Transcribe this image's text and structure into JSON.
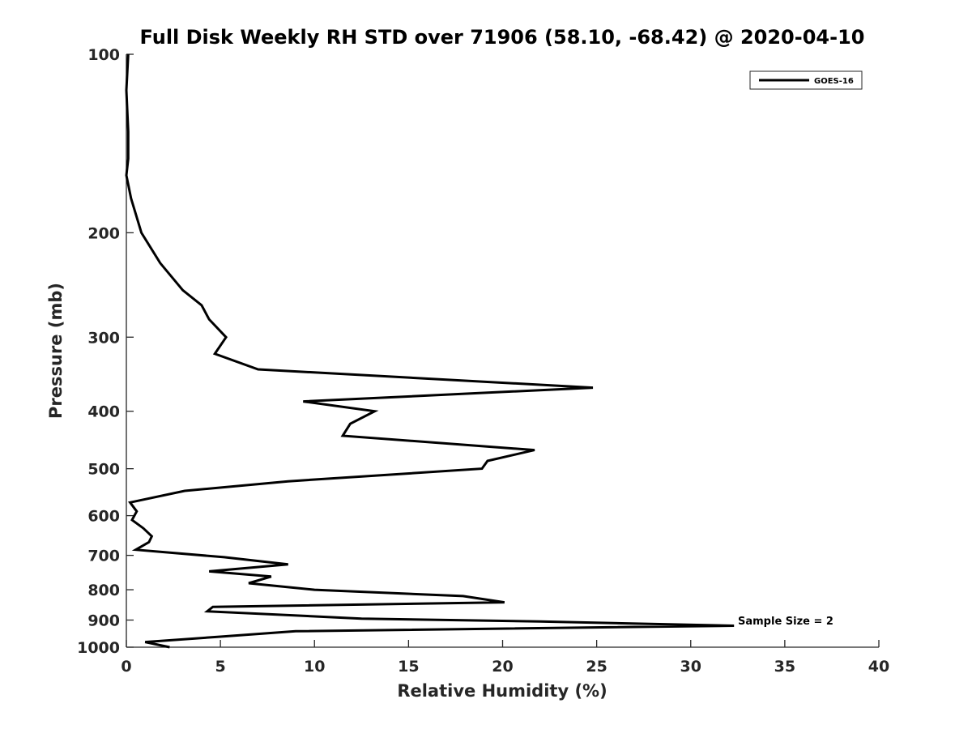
{
  "chart_data": {
    "type": "line",
    "title": "Full Disk Weekly RH STD over 71906 (58.10, -68.42) @ 2020-04-10",
    "xlabel": "Relative Humidity (%)",
    "ylabel": "Pressure (mb)",
    "xlim": [
      0,
      40
    ],
    "ylim": [
      1000,
      100
    ],
    "yscale": "log",
    "reversed_y": true,
    "grid": false,
    "legend_position": "top-right",
    "x_ticks": [
      0,
      5,
      10,
      15,
      20,
      25,
      30,
      35,
      40
    ],
    "x_tick_labels": [
      "0",
      "5",
      "10",
      "15",
      "20",
      "25",
      "30",
      "35",
      "40"
    ],
    "y_ticks": [
      100,
      200,
      300,
      400,
      500,
      600,
      700,
      800,
      900,
      1000
    ],
    "y_tick_labels": [
      "100",
      "200",
      "300",
      "400",
      "500",
      "600",
      "700",
      "800",
      "900",
      "1000"
    ],
    "line_color": "#000000",
    "series": [
      {
        "name": "GOES-16",
        "points": [
          [
            0.1,
            100
          ],
          [
            0.0,
            115
          ],
          [
            0.1,
            135
          ],
          [
            0.1,
            150
          ],
          [
            0.0,
            160
          ],
          [
            0.25,
            175
          ],
          [
            0.8,
            200
          ],
          [
            1.8,
            225
          ],
          [
            3.0,
            250
          ],
          [
            4.0,
            265
          ],
          [
            4.4,
            280
          ],
          [
            5.3,
            300
          ],
          [
            4.7,
            320
          ],
          [
            7.0,
            340
          ],
          [
            24.8,
            365
          ],
          [
            9.4,
            385
          ],
          [
            13.2,
            400
          ],
          [
            11.9,
            420
          ],
          [
            11.5,
            440
          ],
          [
            21.7,
            465
          ],
          [
            19.2,
            485
          ],
          [
            18.9,
            500
          ],
          [
            8.6,
            525
          ],
          [
            3.1,
            545
          ],
          [
            0.2,
            570
          ],
          [
            0.55,
            590
          ],
          [
            0.3,
            610
          ],
          [
            0.9,
            630
          ],
          [
            1.35,
            650
          ],
          [
            1.2,
            665
          ],
          [
            0.5,
            685
          ],
          [
            5.2,
            705
          ],
          [
            8.6,
            725
          ],
          [
            4.4,
            745
          ],
          [
            7.7,
            760
          ],
          [
            6.5,
            780
          ],
          [
            10.0,
            800
          ],
          [
            17.9,
            820
          ],
          [
            20.1,
            840
          ],
          [
            4.6,
            855
          ],
          [
            4.3,
            870
          ],
          [
            12.5,
            895
          ],
          [
            22.0,
            905
          ],
          [
            32.3,
            920
          ],
          [
            9.0,
            940
          ],
          [
            5.0,
            960
          ],
          [
            1.0,
            980
          ],
          [
            2.3,
            1000
          ]
        ]
      }
    ],
    "annotation": "Sample Size = 2"
  }
}
